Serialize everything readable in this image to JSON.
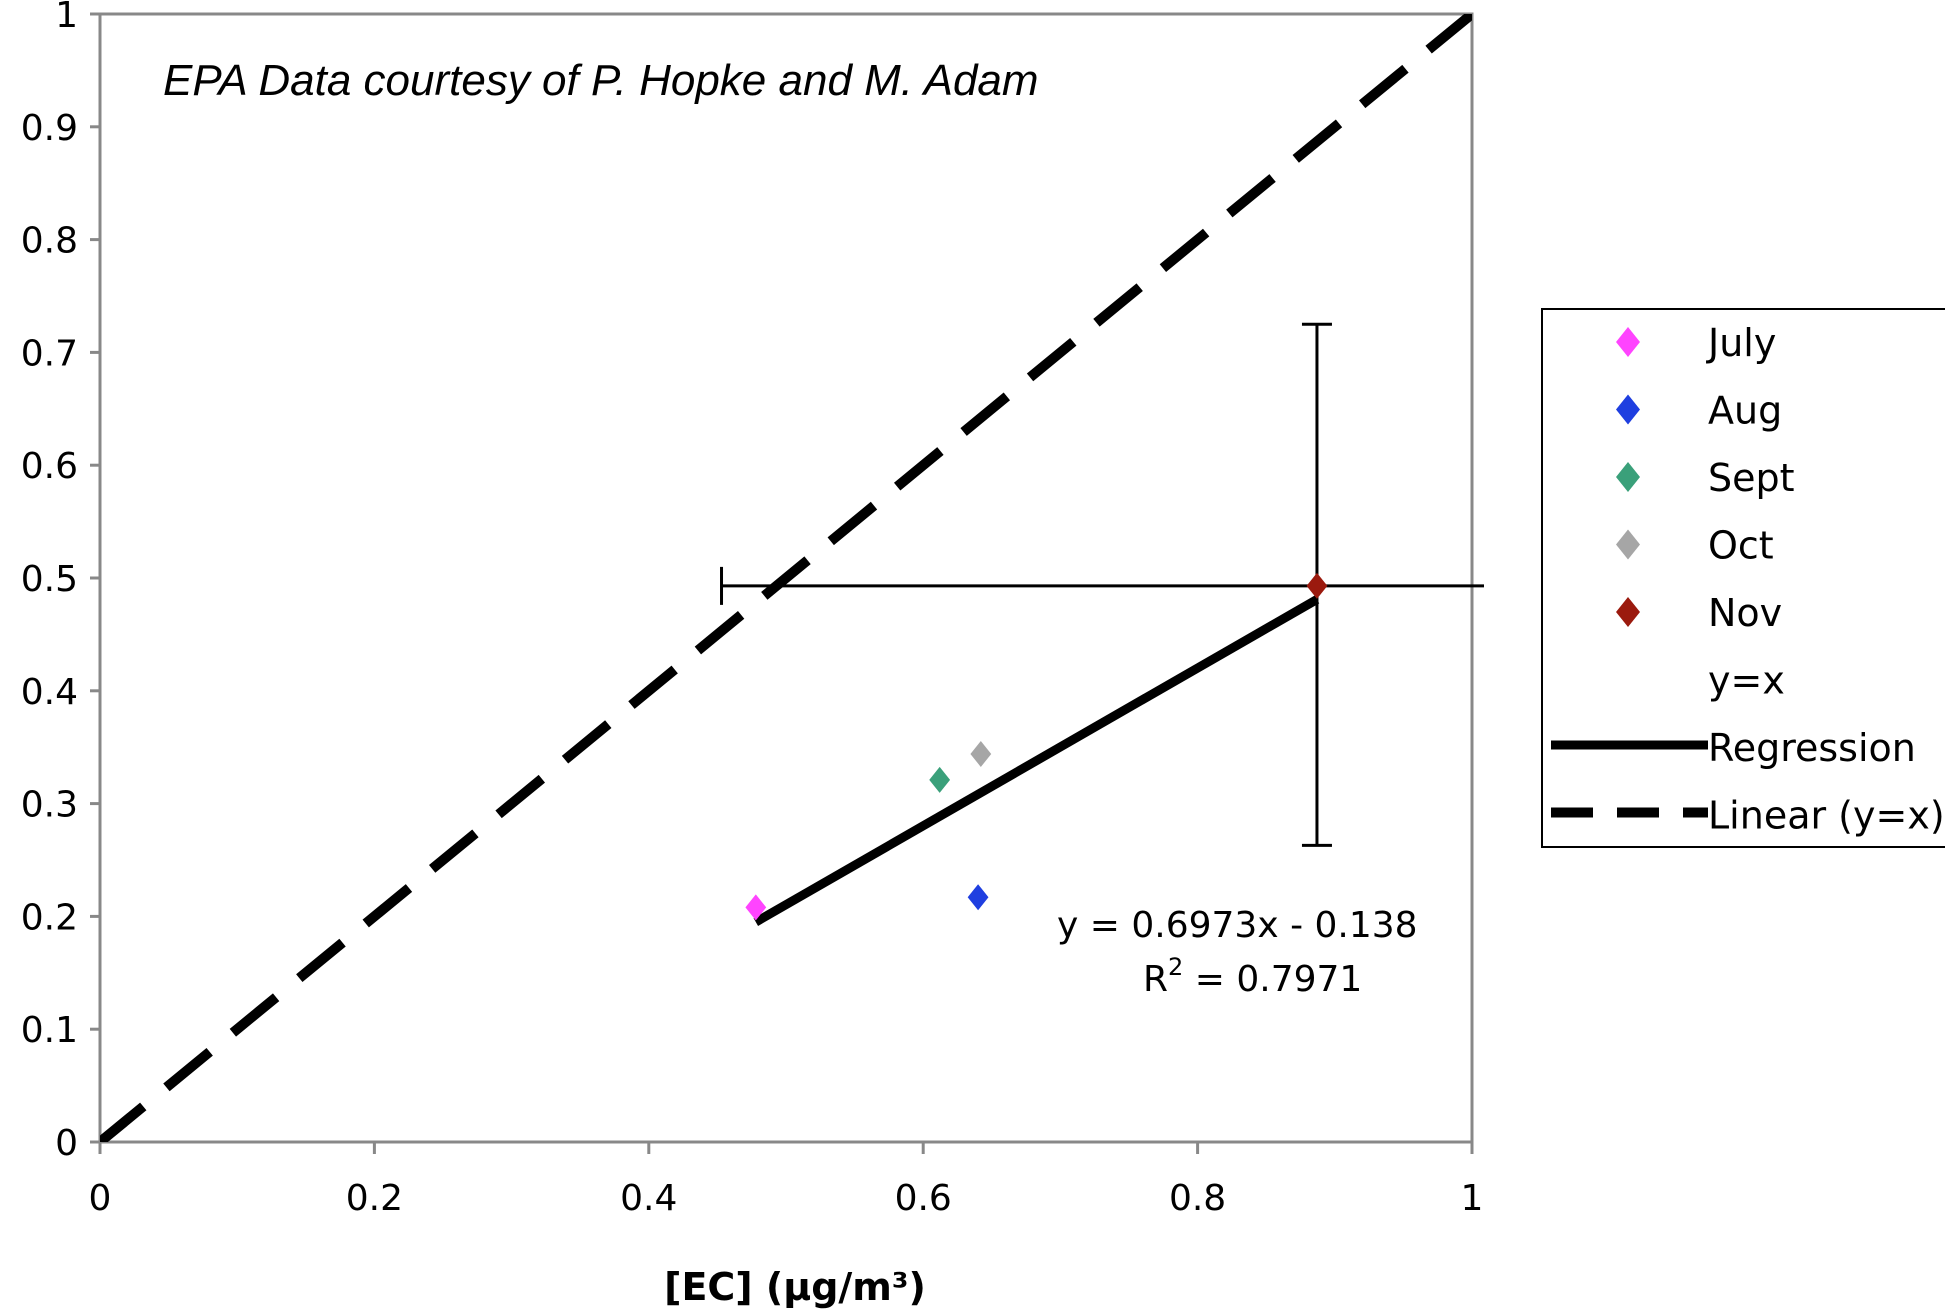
{
  "chart_data": {
    "type": "scatter",
    "annotation": "EPA Data courtesy of P. Hopke and M. Adam",
    "xlabel": "[EC] (μg/m³)",
    "ylabel": "",
    "xlim": [
      0,
      1
    ],
    "ylim": [
      0,
      1
    ],
    "x_ticks": [
      "0",
      "0.2",
      "0.4",
      "0.6",
      "0.8",
      "1"
    ],
    "y_ticks": [
      "0",
      "0.1",
      "0.2",
      "0.3",
      "0.4",
      "0.5",
      "0.6",
      "0.7",
      "0.8",
      "0.9",
      "1"
    ],
    "x_tick_values": [
      0,
      0.2,
      0.4,
      0.6,
      0.8,
      1
    ],
    "y_tick_values": [
      0,
      0.1,
      0.2,
      0.3,
      0.4,
      0.5,
      0.6,
      0.7,
      0.8,
      0.9,
      1
    ],
    "series": [
      {
        "name": "July",
        "x": 0.478,
        "y": 0.208,
        "color": "#ff44ff",
        "marker": "diamond"
      },
      {
        "name": "Aug",
        "x": 0.64,
        "y": 0.217,
        "color": "#1f3fe0",
        "marker": "diamond"
      },
      {
        "name": "Sept",
        "x": 0.612,
        "y": 0.321,
        "color": "#3aa07a",
        "marker": "diamond"
      },
      {
        "name": "Oct",
        "x": 0.642,
        "y": 0.344,
        "color": "#a6a6a6",
        "marker": "diamond"
      },
      {
        "name": "Nov",
        "x": 0.887,
        "y": 0.493,
        "color": "#9b1a0e",
        "marker": "diamond",
        "x_error": [
          0.453,
          1.0
        ],
        "y_error": [
          0.263,
          0.725
        ]
      }
    ],
    "lines": [
      {
        "name": "y=x",
        "style": "none"
      },
      {
        "name": "Regression",
        "style": "solid",
        "color": "#000000",
        "x": [
          0.478,
          0.887
        ],
        "y": [
          0.195,
          0.481
        ]
      },
      {
        "name": "Linear (y=x)",
        "style": "dashed",
        "color": "#000000",
        "x": [
          0,
          1
        ],
        "y": [
          0,
          1
        ]
      }
    ],
    "equation": "y = 0.6973x - 0.138",
    "r_squared_prefix": "R",
    "r_squared_sup": "2",
    "r_squared_value": " = 0.7971",
    "legend": {
      "placement": "right",
      "entries": [
        "July",
        "Aug",
        "Sept",
        "Oct",
        "Nov",
        "y=x",
        "Regression",
        "Linear (y=x)"
      ]
    },
    "grid": false
  }
}
